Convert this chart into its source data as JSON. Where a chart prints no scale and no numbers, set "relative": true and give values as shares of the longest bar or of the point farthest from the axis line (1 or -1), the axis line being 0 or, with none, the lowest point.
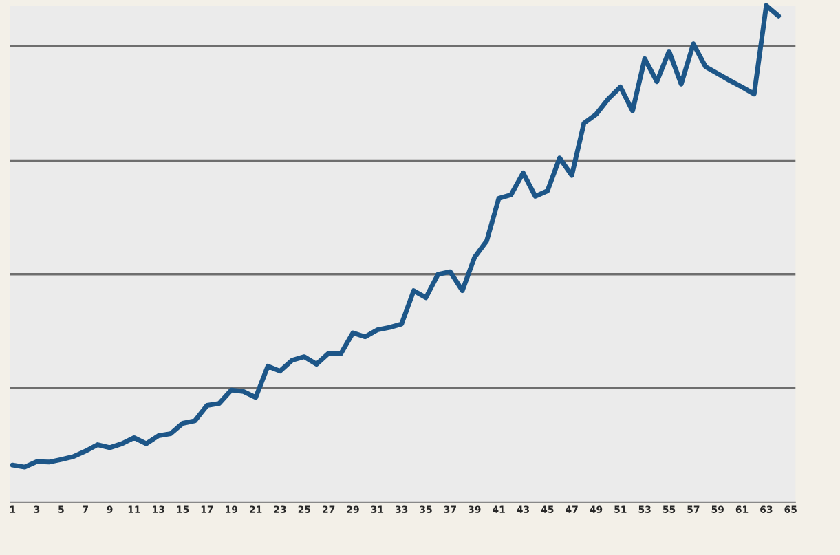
{
  "chart_data": {
    "type": "line",
    "relative": true,
    "categories": [
      "1",
      null,
      "3",
      null,
      "5",
      null,
      "7",
      null,
      "9",
      null,
      "11",
      null,
      "13",
      null,
      "15",
      null,
      "17",
      null,
      "19",
      null,
      "21",
      null,
      "23",
      null,
      "25",
      null,
      "27",
      null,
      "29",
      null,
      "31",
      null,
      "33",
      null,
      "35",
      null,
      "37",
      null,
      "39",
      null,
      "41",
      null,
      "43",
      null,
      "45",
      null,
      "47",
      null,
      "49",
      null,
      "51",
      null,
      "53",
      null,
      "55",
      null,
      "57",
      null,
      "59",
      null,
      "61",
      null,
      "63",
      null,
      "65"
    ],
    "series": [
      {
        "color": "#1d5688",
        "values": [
          0.075,
          0.071,
          0.082,
          0.081,
          0.086,
          0.092,
          0.103,
          0.116,
          0.11,
          0.118,
          0.13,
          0.118,
          0.134,
          0.138,
          0.159,
          0.164,
          0.195,
          0.199,
          0.226,
          0.223,
          0.211,
          0.274,
          0.264,
          0.286,
          0.293,
          0.278,
          0.3,
          0.299,
          0.341,
          0.333,
          0.347,
          0.352,
          0.359,
          0.426,
          0.412,
          0.459,
          0.464,
          0.426,
          0.493,
          0.526,
          0.612,
          0.619,
          0.663,
          0.616,
          0.627,
          0.693,
          0.658,
          0.763,
          0.781,
          0.812,
          0.836,
          0.788,
          0.893,
          0.847,
          0.908,
          0.842,
          0.923,
          0.877,
          0.863,
          0.849,
          0.836,
          0.822,
          1,
          0.979,
          null
        ]
      }
    ],
    "ref_lines": [
      {
        "axis": "y",
        "value": 0.23,
        "color": "#6e6e6e"
      },
      {
        "axis": "y",
        "value": 0.459,
        "color": "#6e6e6e"
      },
      {
        "axis": "y",
        "value": 0.688,
        "color": "#6e6e6e"
      },
      {
        "axis": "y",
        "value": 0.918,
        "color": "#6e6e6e"
      }
    ],
    "legend": false,
    "marker": "none",
    "line_style": "solid",
    "grid": false
  }
}
